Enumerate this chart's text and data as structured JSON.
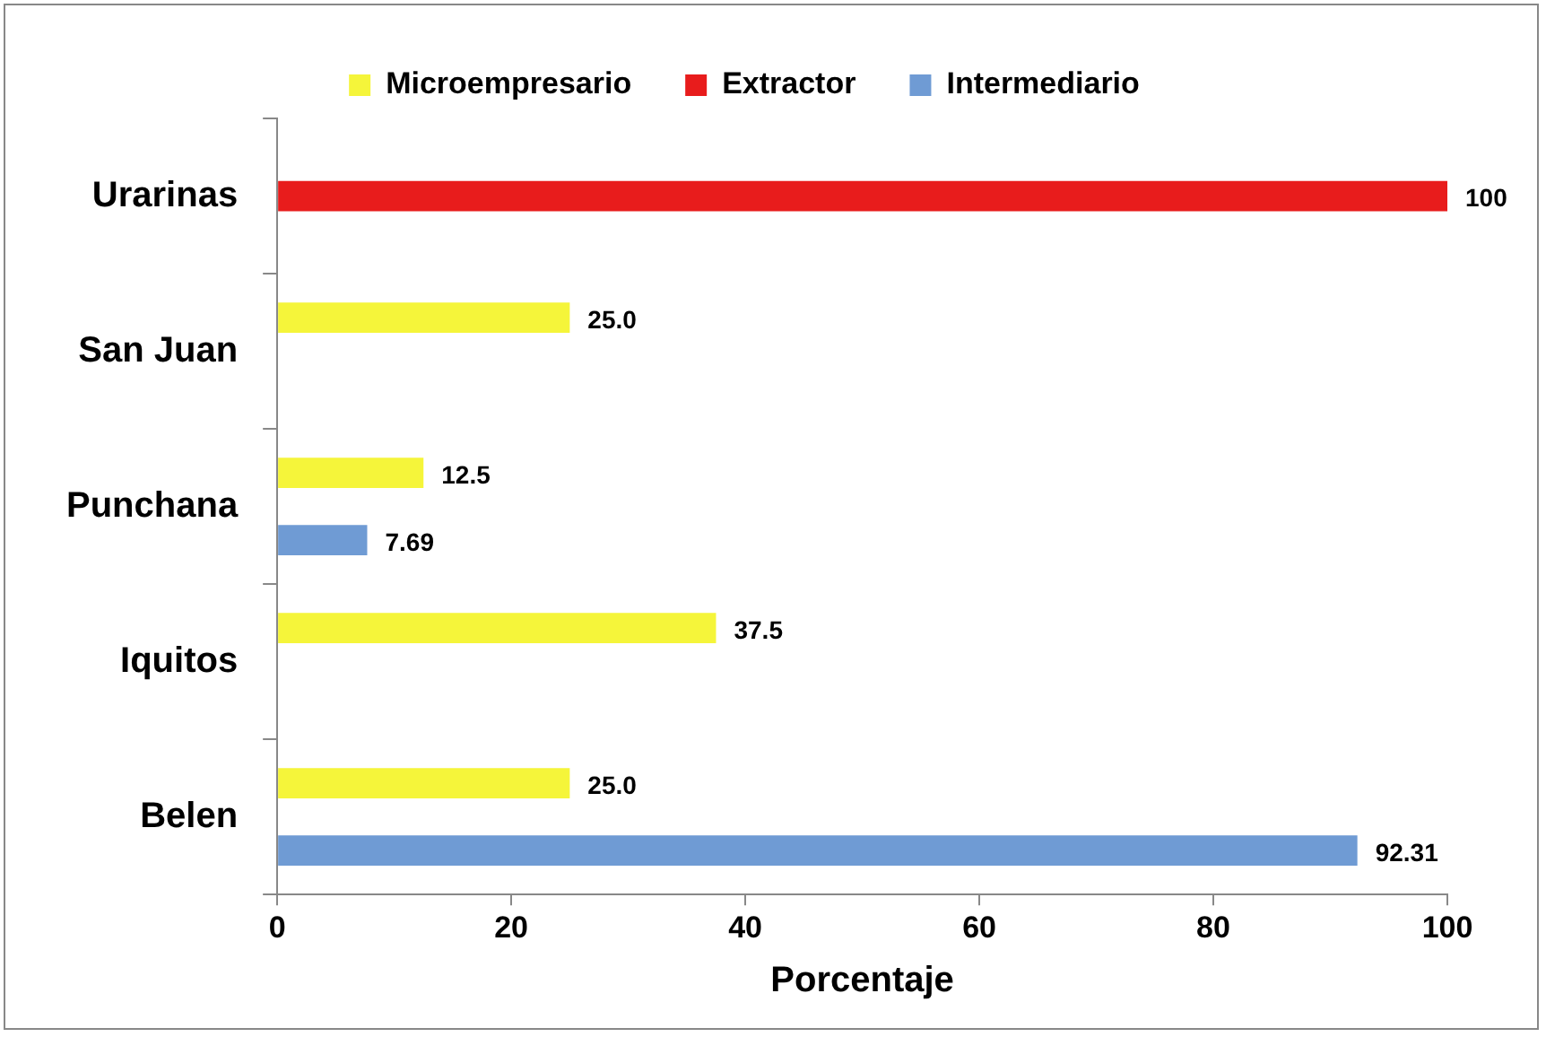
{
  "chart_data": {
    "type": "bar",
    "orientation": "horizontal",
    "xlabel": "Porcentaje",
    "categories": [
      "Urarinas",
      "San Juan",
      "Punchana",
      "Iquitos",
      "Belen"
    ],
    "series": [
      {
        "name": "Microempresario",
        "color": "#f5f53a",
        "values": [
          null,
          25.0,
          12.5,
          37.5,
          25.0
        ],
        "value_labels": [
          null,
          "25.0",
          "12.5",
          "37.5",
          "25.0"
        ]
      },
      {
        "name": "Extractor",
        "color": "#e81c1c",
        "values": [
          100,
          null,
          null,
          null,
          null
        ],
        "value_labels": [
          "100",
          null,
          null,
          null,
          null
        ]
      },
      {
        "name": "Intermediario",
        "color": "#6f9bd4",
        "values": [
          null,
          null,
          7.69,
          null,
          92.31
        ],
        "value_labels": [
          null,
          null,
          "7.69",
          null,
          "92.31"
        ]
      }
    ],
    "xlim": [
      0,
      100
    ],
    "xticks": [
      0,
      20,
      40,
      60,
      80,
      100
    ],
    "grid": false,
    "legend": "top"
  }
}
